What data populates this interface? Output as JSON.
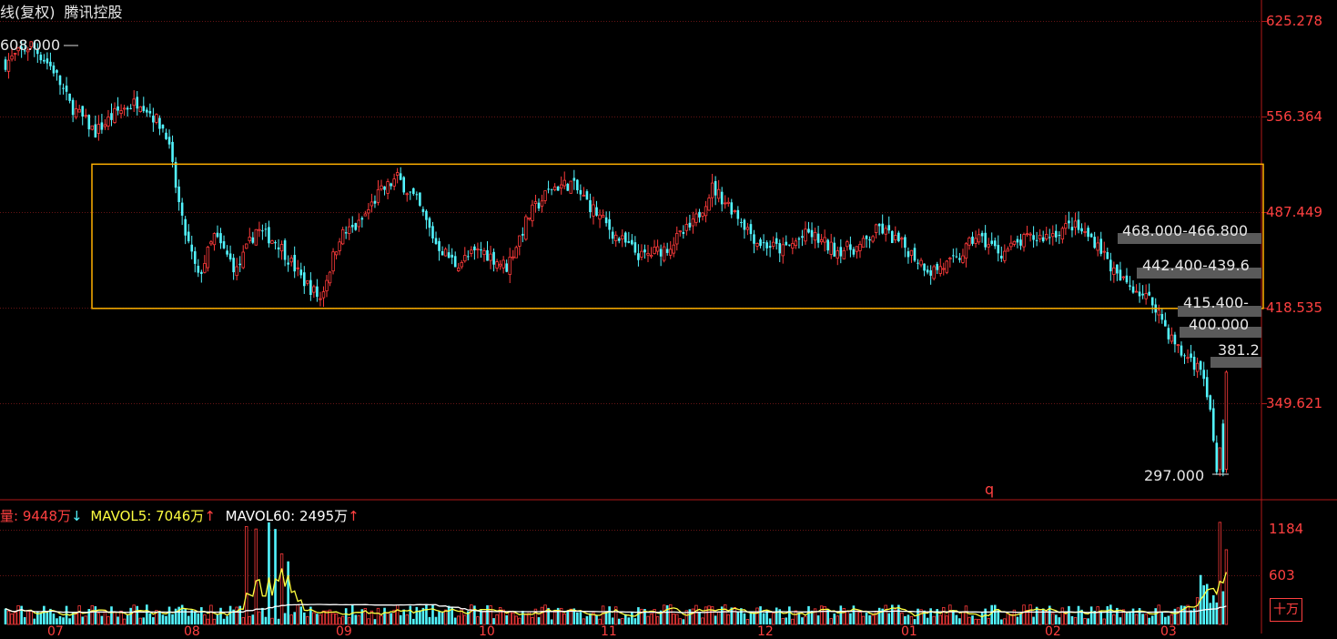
{
  "header": {
    "chart_kind": "线(复权)",
    "stock_name": "腾讯控股"
  },
  "price_axis": {
    "labels": [
      "625.278",
      "556.364",
      "487.449",
      "418.535",
      "349.621"
    ]
  },
  "volume_axis": {
    "labels": [
      "1184",
      "603"
    ],
    "unit": "十万"
  },
  "volume_legend": {
    "vol_label": "量: 9448万",
    "vol_arrow": "↓",
    "mavol5_label": "MAVOL5: 7046万",
    "mavol5_arrow": "↑",
    "mavol60_label": "MAVOL60: 2495万",
    "mavol60_arrow": "↑"
  },
  "annotations": {
    "high": "608.000",
    "low": "297.000",
    "levels": [
      "468.000-466.800",
      "442.400-439.6",
      "415.400-",
      "400.000",
      "381.2"
    ],
    "marker": "q"
  },
  "month_labels": [
    "07",
    "08",
    "09",
    "10",
    "11",
    "12",
    "01",
    "02",
    "03"
  ],
  "colors": {
    "up": "#ff3b3b",
    "down": "#52f5ff",
    "box": "#ffb000",
    "grid": "#661414",
    "mavol5": "#ffff40",
    "mavol60": "#ffffff"
  },
  "chart_data": {
    "type": "candlestick",
    "ylim": [
      297,
      625.278
    ],
    "price_ticks": [
      625.278,
      556.364,
      487.449,
      418.535,
      349.621
    ],
    "range_box": {
      "upper": 522,
      "lower": 418
    },
    "high": 608.0,
    "low": 297.0,
    "anchors": [
      [
        0,
        595
      ],
      [
        8,
        608
      ],
      [
        15,
        590
      ],
      [
        20,
        565
      ],
      [
        28,
        545
      ],
      [
        35,
        560
      ],
      [
        42,
        568
      ],
      [
        50,
        545
      ],
      [
        55,
        480
      ],
      [
        60,
        440
      ],
      [
        65,
        470
      ],
      [
        72,
        445
      ],
      [
        78,
        475
      ],
      [
        85,
        465
      ],
      [
        92,
        440
      ],
      [
        98,
        425
      ],
      [
        104,
        470
      ],
      [
        110,
        478
      ],
      [
        116,
        500
      ],
      [
        122,
        512
      ],
      [
        128,
        495
      ],
      [
        134,
        465
      ],
      [
        140,
        450
      ],
      [
        148,
        460
      ],
      [
        156,
        448
      ],
      [
        163,
        485
      ],
      [
        170,
        505
      ],
      [
        176,
        508
      ],
      [
        182,
        492
      ],
      [
        190,
        470
      ],
      [
        198,
        455
      ],
      [
        206,
        462
      ],
      [
        214,
        478
      ],
      [
        220,
        505
      ],
      [
        227,
        488
      ],
      [
        234,
        466
      ],
      [
        242,
        460
      ],
      [
        250,
        472
      ],
      [
        258,
        460
      ],
      [
        266,
        462
      ],
      [
        272,
        476
      ],
      [
        280,
        462
      ],
      [
        288,
        445
      ],
      [
        296,
        452
      ],
      [
        302,
        470
      ],
      [
        310,
        458
      ],
      [
        318,
        468
      ],
      [
        324,
        470
      ],
      [
        332,
        478
      ],
      [
        340,
        465
      ],
      [
        346,
        440
      ],
      [
        352,
        432
      ],
      [
        358,
        420
      ],
      [
        362,
        400
      ],
      [
        366,
        385
      ],
      [
        369,
        382
      ],
      [
        372,
        372
      ],
      [
        375,
        345
      ],
      [
        377,
        300
      ],
      [
        379,
        335
      ],
      [
        380,
        372
      ]
    ],
    "volume": {
      "ylim": [
        0,
        1250
      ],
      "last": 9448,
      "mavol5": 7046,
      "mavol60": 2495,
      "unit": "万",
      "spikes": [
        [
          75,
          1180
        ],
        [
          78,
          1150
        ],
        [
          82,
          1230
        ],
        [
          84,
          1150
        ],
        [
          86,
          850
        ],
        [
          88,
          760
        ],
        [
          378,
          1230
        ],
        [
          380,
          900
        ]
      ]
    }
  }
}
